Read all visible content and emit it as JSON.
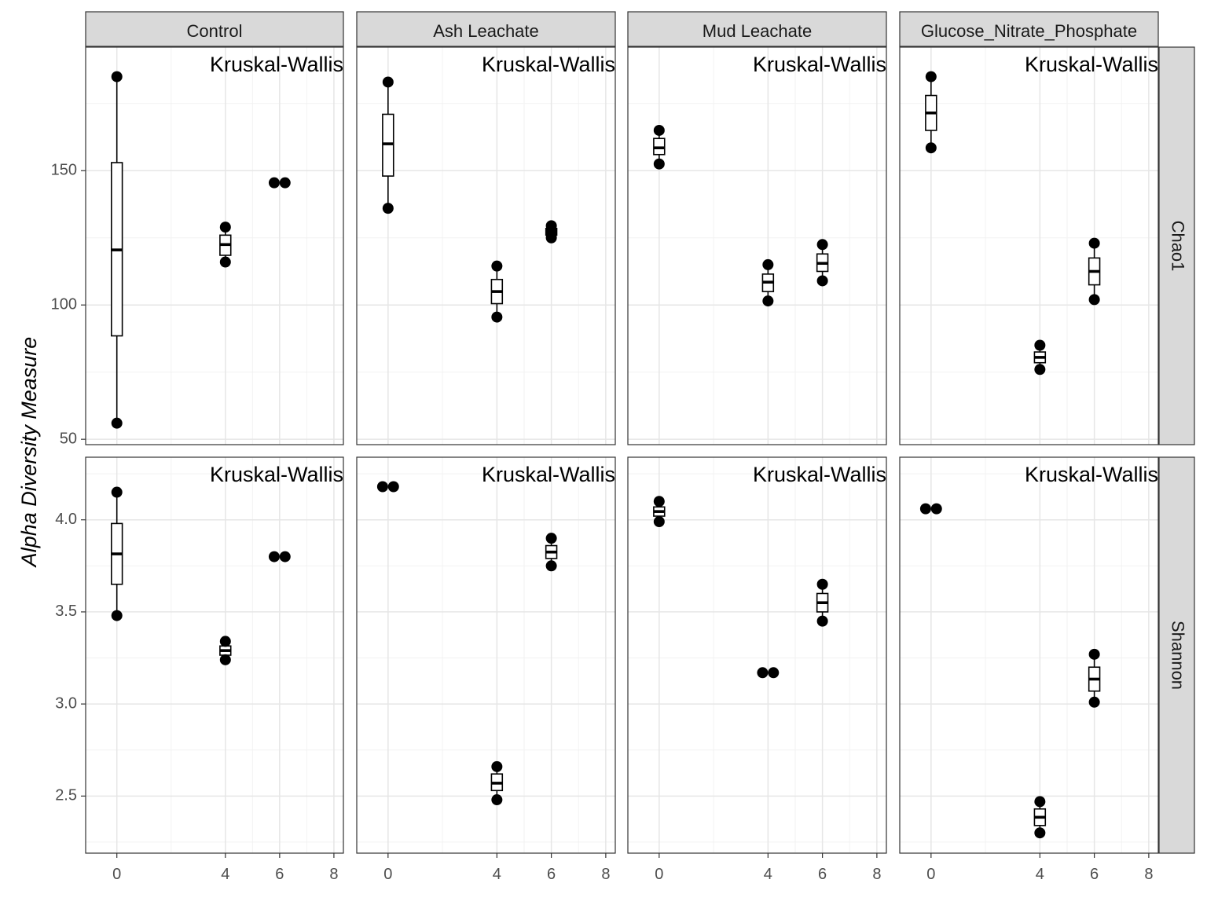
{
  "chart_data": {
    "type": "facet_boxplot",
    "ylabel": "Alpha Diversity Measure",
    "xlabel": "",
    "x_ticks": [
      0,
      4,
      6,
      8
    ],
    "xlim": [
      -1.15,
      8.35
    ],
    "columns": [
      "Control",
      "Ash Leachate",
      "Mud Leachate",
      "Glucose_Nitrate_Phosphate"
    ],
    "rows": [
      {
        "name": "Chao1",
        "ylim": [
          48,
          196
        ],
        "y_ticks": [
          50,
          100,
          150
        ],
        "y_tick_labels": [
          "50",
          "100",
          "150"
        ]
      },
      {
        "name": "Shannon",
        "ylim": [
          2.19,
          4.34
        ],
        "y_ticks": [
          2.5,
          3.0,
          3.5,
          4.0
        ],
        "y_tick_labels": [
          "2.5",
          "3.0",
          "3.5",
          "4.0"
        ]
      }
    ],
    "annotation": "Kruskal-Wallis",
    "panels": [
      {
        "column": "Control",
        "row": "Chao1",
        "points": [
          [
            0,
            185
          ],
          [
            0,
            56
          ],
          [
            4,
            129
          ],
          [
            4,
            116
          ],
          [
            5.8,
            145.5
          ],
          [
            6.2,
            145.5
          ]
        ],
        "boxes": [
          {
            "x": 0,
            "lower": 88.5,
            "q1": 88.5,
            "median": 120.5,
            "q3": 153,
            "upper": 185,
            "whisk_low": 56
          },
          {
            "x": 4,
            "lower": 118.5,
            "q1": 118.5,
            "median": 122.5,
            "q3": 126,
            "upper": 129,
            "whisk_low": 116
          }
        ]
      },
      {
        "column": "Ash Leachate",
        "row": "Chao1",
        "points": [
          [
            0,
            183
          ],
          [
            0,
            136
          ],
          [
            4,
            114.5
          ],
          [
            4,
            95.5
          ],
          [
            6,
            129.5
          ],
          [
            6,
            128
          ],
          [
            6,
            126.5
          ],
          [
            6,
            125
          ]
        ],
        "boxes": [
          {
            "x": 0,
            "q1": 148,
            "median": 160,
            "q3": 171,
            "upper": 183,
            "whisk_low": 136
          },
          {
            "x": 4,
            "q1": 100.5,
            "median": 105,
            "q3": 109.5,
            "upper": 114.5,
            "whisk_low": 95.5
          },
          {
            "x": 6,
            "q1": 126,
            "median": 127.5,
            "q3": 128.5,
            "upper": 129.5,
            "whisk_low": 125
          }
        ]
      },
      {
        "column": "Mud Leachate",
        "row": "Chao1",
        "points": [
          [
            0,
            165
          ],
          [
            0,
            152.5
          ],
          [
            4,
            115
          ],
          [
            4,
            101.5
          ],
          [
            6,
            122.5
          ],
          [
            6,
            109
          ]
        ],
        "boxes": [
          {
            "x": 0,
            "q1": 156,
            "median": 158.5,
            "q3": 162,
            "upper": 165,
            "whisk_low": 152.5
          },
          {
            "x": 4,
            "q1": 105,
            "median": 108.5,
            "q3": 111.5,
            "upper": 115,
            "whisk_low": 101.5
          },
          {
            "x": 6,
            "q1": 112.5,
            "median": 115.5,
            "q3": 119,
            "upper": 122.5,
            "whisk_low": 109
          }
        ]
      },
      {
        "column": "Glucose_Nitrate_Phosphate",
        "row": "Chao1",
        "points": [
          [
            0,
            185
          ],
          [
            0,
            158.5
          ],
          [
            4,
            85
          ],
          [
            4,
            76
          ],
          [
            6,
            123
          ],
          [
            6,
            102
          ]
        ],
        "boxes": [
          {
            "x": 0,
            "q1": 165,
            "median": 171.5,
            "q3": 178,
            "upper": 185,
            "whisk_low": 158.5
          },
          {
            "x": 4,
            "q1": 78.5,
            "median": 80.5,
            "q3": 82.5,
            "upper": 85,
            "whisk_low": 76
          },
          {
            "x": 6,
            "q1": 107.5,
            "median": 112.5,
            "q3": 117.5,
            "upper": 123,
            "whisk_low": 102
          }
        ]
      },
      {
        "column": "Control",
        "row": "Shannon",
        "points": [
          [
            0,
            4.15
          ],
          [
            0,
            3.48
          ],
          [
            4,
            3.34
          ],
          [
            4,
            3.24
          ],
          [
            5.8,
            3.8
          ],
          [
            6.2,
            3.8
          ]
        ],
        "boxes": [
          {
            "x": 0,
            "q1": 3.65,
            "median": 3.815,
            "q3": 3.98,
            "upper": 4.15,
            "whisk_low": 3.48
          },
          {
            "x": 4,
            "q1": 3.265,
            "median": 3.29,
            "q3": 3.315,
            "upper": 3.34,
            "whisk_low": 3.24
          }
        ]
      },
      {
        "column": "Ash Leachate",
        "row": "Shannon",
        "points": [
          [
            -0.2,
            4.18
          ],
          [
            0.2,
            4.18
          ],
          [
            4,
            2.66
          ],
          [
            4,
            2.48
          ],
          [
            6,
            3.9
          ],
          [
            6,
            3.75
          ]
        ],
        "boxes": [
          {
            "x": 4,
            "q1": 2.53,
            "median": 2.57,
            "q3": 2.62,
            "upper": 2.66,
            "whisk_low": 2.48
          },
          {
            "x": 6,
            "q1": 3.79,
            "median": 3.825,
            "q3": 3.86,
            "upper": 3.9,
            "whisk_low": 3.75
          }
        ]
      },
      {
        "column": "Mud Leachate",
        "row": "Shannon",
        "points": [
          [
            0,
            4.1
          ],
          [
            0,
            3.99
          ],
          [
            3.8,
            3.17
          ],
          [
            4.2,
            3.17
          ],
          [
            6,
            3.65
          ],
          [
            6,
            3.45
          ]
        ],
        "boxes": [
          {
            "x": 0,
            "q1": 4.02,
            "median": 4.045,
            "q3": 4.07,
            "upper": 4.1,
            "whisk_low": 3.99
          },
          {
            "x": 6,
            "q1": 3.5,
            "median": 3.55,
            "q3": 3.6,
            "upper": 3.65,
            "whisk_low": 3.45
          }
        ]
      },
      {
        "column": "Glucose_Nitrate_Phosphate",
        "row": "Shannon",
        "points": [
          [
            -0.2,
            4.06
          ],
          [
            0.2,
            4.06
          ],
          [
            4,
            2.47
          ],
          [
            4,
            2.3
          ],
          [
            6,
            3.27
          ],
          [
            6,
            3.01
          ]
        ],
        "boxes": [
          {
            "x": 4,
            "q1": 2.34,
            "median": 2.385,
            "q3": 2.43,
            "upper": 2.47,
            "whisk_low": 2.3
          },
          {
            "x": 6,
            "q1": 3.07,
            "median": 3.135,
            "q3": 3.2,
            "upper": 3.27,
            "whisk_low": 3.01
          }
        ]
      }
    ],
    "grid": true,
    "legend": "none"
  }
}
